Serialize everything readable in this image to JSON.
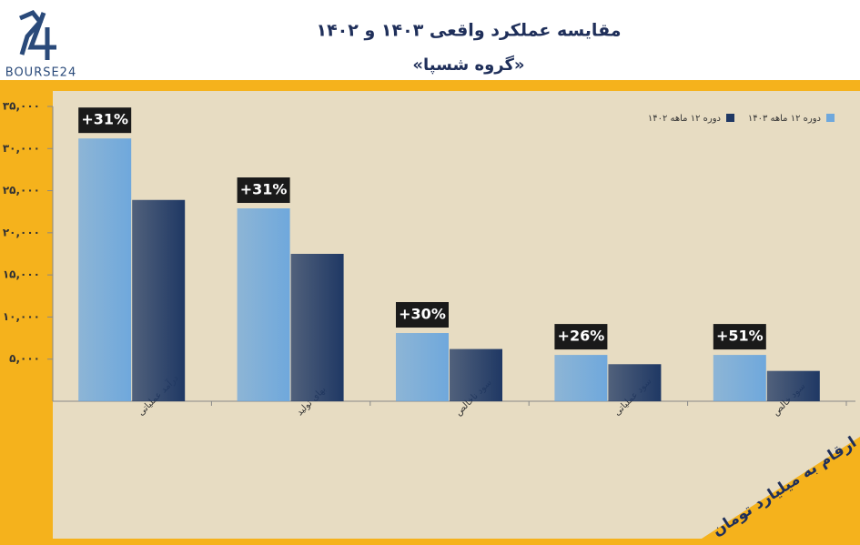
{
  "logo": "BOURSE24",
  "chart_data": {
    "type": "bar",
    "title": "مقایسه عملکرد واقعی ۱۴۰۳ و ۱۴۰۲",
    "subtitle": "«گروه شسپا»",
    "note": "ارقام به میلیارد تومان",
    "categories": [
      "درآمد عملیاتی",
      "بهای تولید",
      "سود ناخالص",
      "سود عملیاتی",
      "سود خالص"
    ],
    "series": [
      {
        "name": "دوره ۱۲ ماهه ۱۴۰۳",
        "color": "#6fa8dc",
        "values": [
          31200,
          22900,
          8100,
          5500,
          5500
        ]
      },
      {
        "name": "دوره ۱۲ ماهه ۱۴۰۲",
        "color": "#1f3864",
        "values": [
          23900,
          17500,
          6200,
          4400,
          3600
        ]
      }
    ],
    "annotations": [
      "+31%",
      "+31%",
      "+30%",
      "+26%",
      "+51%"
    ],
    "ylim": [
      0,
      35000
    ],
    "yticks": [
      {
        "value": 5000,
        "label": "۵,۰۰۰"
      },
      {
        "value": 10000,
        "label": "۱۰,۰۰۰"
      },
      {
        "value": 15000,
        "label": "۱۵,۰۰۰"
      },
      {
        "value": 20000,
        "label": "۲۰,۰۰۰"
      },
      {
        "value": 25000,
        "label": "۲۵,۰۰۰"
      },
      {
        "value": 30000,
        "label": "۳۰,۰۰۰"
      },
      {
        "value": 35000,
        "label": "۳۵,۰۰۰"
      }
    ],
    "grid": false,
    "legend": "top-right"
  }
}
